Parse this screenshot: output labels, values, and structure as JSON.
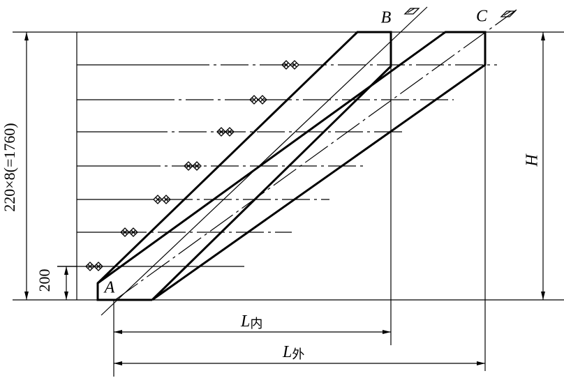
{
  "points": {
    "A": "A",
    "B": "B",
    "C": "C"
  },
  "dimensions": {
    "total_height": "220×8(=1760)",
    "first_step": "200",
    "height": "H",
    "inner_length": {
      "symbol": "L",
      "subscript": "内"
    },
    "outer_length": {
      "symbol": "L",
      "subscript": "外"
    }
  }
}
